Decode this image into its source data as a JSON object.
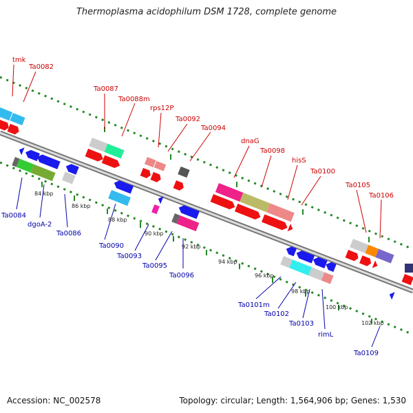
{
  "title": "Thermoplasma acidophilum DSM 1728, complete genome",
  "accession": "Accession: NC_002578",
  "topology": "Topology: circular; Length: 1,564,906 bp; Genes: 1,530",
  "colors": {
    "forward_label": "#cc0000",
    "reverse_label": "#0000aa",
    "forward_arrow": "#ee1111",
    "reverse_arrow": "#1a1aee",
    "tick": "#228822",
    "backbone": "#888888"
  },
  "kbp_labels": [
    "84 kbp",
    "86 kbp",
    "88 kbp",
    "90 kbp",
    "92 kbp",
    "94 kbp",
    "96 kbp",
    "98 kbp",
    "100 kbp",
    "102 kbp"
  ],
  "forward_genes": [
    "tmk",
    "Ta0082",
    "Ta0087",
    "Ta0088m",
    "rps12P",
    "Ta0092",
    "Ta0094",
    "dnaG",
    "Ta0098",
    "hisS",
    "Ta0100",
    "Ta0105",
    "Ta0106"
  ],
  "reverse_genes": [
    "Ta0084",
    "dgoA-2",
    "Ta0086",
    "Ta0090",
    "Ta0093",
    "Ta0095",
    "Ta0096",
    "Ta0101m",
    "Ta0102",
    "Ta0103",
    "rimL",
    "Ta0109"
  ]
}
